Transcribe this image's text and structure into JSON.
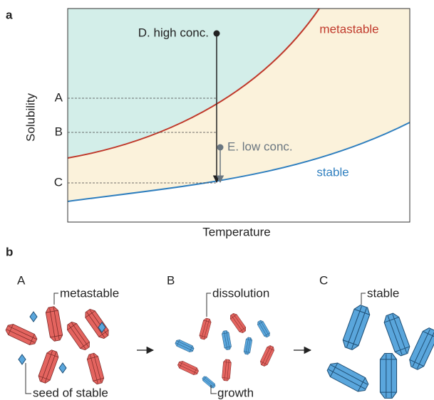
{
  "panel_a": {
    "label": "a",
    "y_axis_label": "Solubility",
    "x_axis_label": "Temperature",
    "levels": [
      "A",
      "B",
      "C"
    ],
    "curves": [
      "metastable",
      "stable"
    ],
    "points": [
      "D. high conc.",
      "E. low conc."
    ]
  },
  "panel_b": {
    "label": "b",
    "steps": [
      {
        "label": "A",
        "annotations": [
          "metastable",
          "seed of stable"
        ]
      },
      {
        "label": "B",
        "annotations": [
          "dissolution",
          "growth"
        ]
      },
      {
        "label": "C",
        "annotations": [
          "stable"
        ]
      }
    ]
  }
}
